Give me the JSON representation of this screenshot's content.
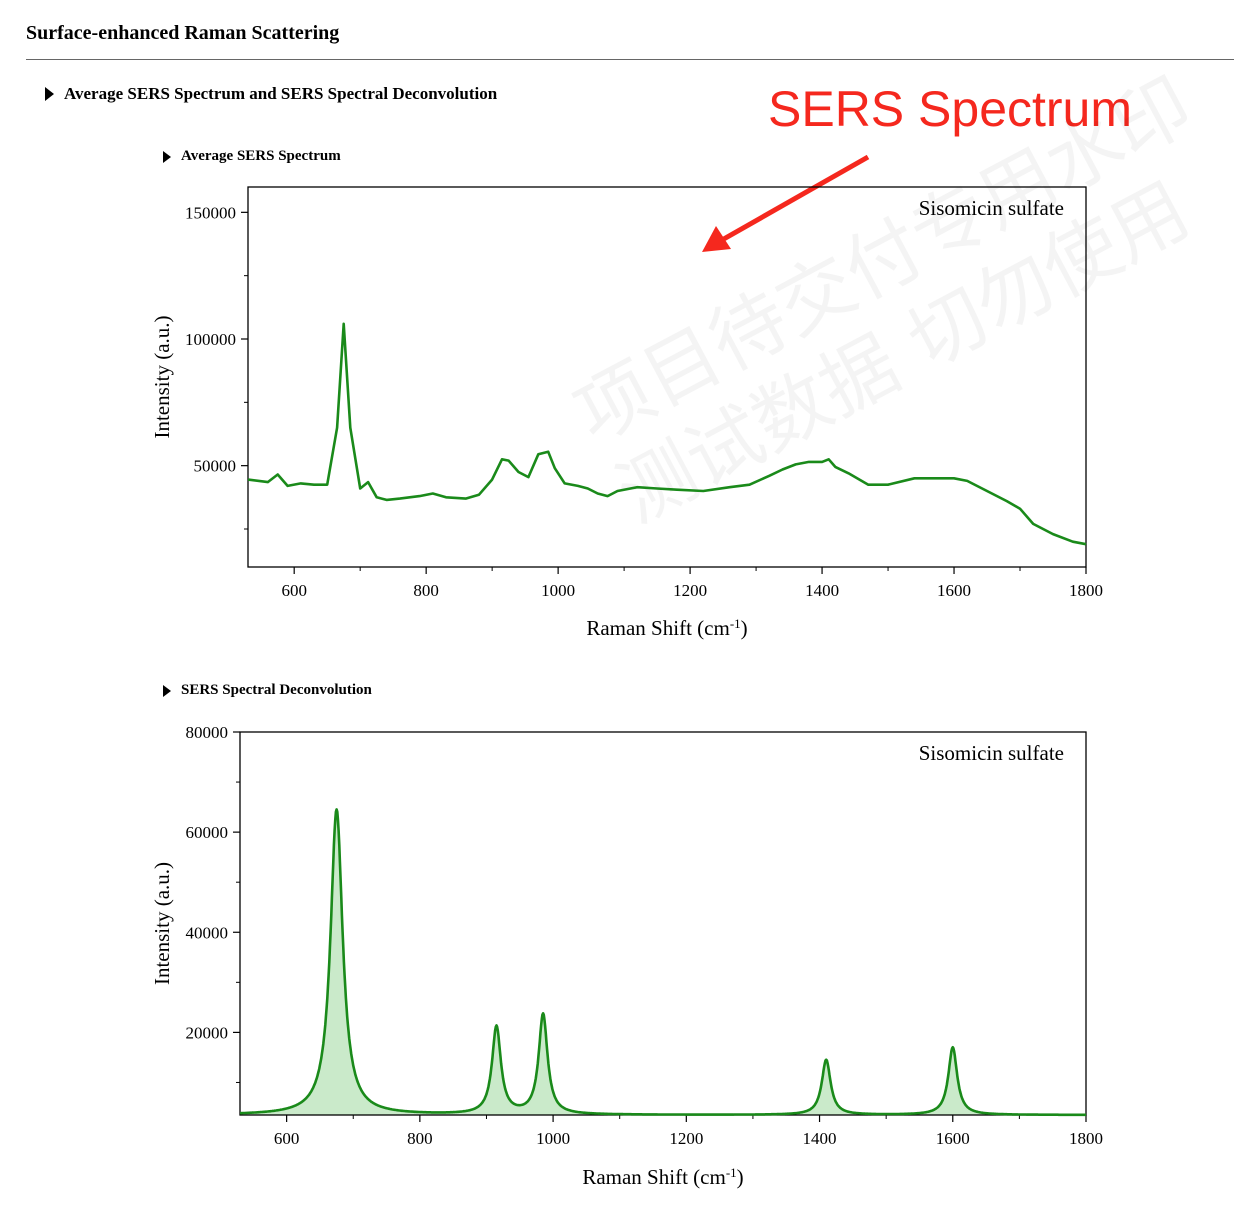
{
  "page": {
    "title": "Surface-enhanced Raman Scattering",
    "section": "Average SERS Spectrum and SERS Spectral Deconvolution",
    "annotation": "SERS Spectrum",
    "watermark_lines": [
      "项目待交付专用水印",
      "测试数据 切勿使用"
    ]
  },
  "colors": {
    "line": "#1a8a1a",
    "fill": "#9fd89f",
    "annotation": "#f5281e"
  },
  "chart_data": [
    {
      "section_title": "Average SERS Spectrum",
      "type": "line",
      "legend": "Sisomicin sulfate",
      "xlabel": "Raman Shift (cm",
      "xlabel_sup": "-1",
      "xlabel_end": ")",
      "ylabel": "Intensity (a.u.)",
      "xlim": [
        530,
        1800
      ],
      "ylim": [
        10000,
        160000
      ],
      "xticks": [
        600,
        800,
        1000,
        1200,
        1400,
        1600,
        1800
      ],
      "yticks": [
        50000,
        100000,
        150000
      ],
      "x": [
        530,
        560,
        575,
        590,
        610,
        630,
        650,
        665,
        675,
        685,
        700,
        712,
        725,
        740,
        760,
        790,
        810,
        830,
        860,
        880,
        900,
        915,
        925,
        940,
        955,
        970,
        985,
        995,
        1010,
        1030,
        1045,
        1060,
        1075,
        1090,
        1120,
        1150,
        1180,
        1220,
        1260,
        1290,
        1320,
        1340,
        1360,
        1380,
        1400,
        1410,
        1420,
        1440,
        1470,
        1500,
        1540,
        1570,
        1600,
        1620,
        1650,
        1680,
        1700,
        1720,
        1750,
        1780,
        1800
      ],
      "y": [
        44500,
        43500,
        46500,
        42000,
        43000,
        42500,
        42500,
        65000,
        106000,
        65000,
        41000,
        43500,
        37500,
        36500,
        37000,
        38000,
        39000,
        37500,
        37000,
        38500,
        44500,
        52500,
        52000,
        47500,
        45500,
        54500,
        55500,
        49000,
        43000,
        42000,
        41000,
        39000,
        38000,
        40000,
        41500,
        41000,
        40500,
        40000,
        41500,
        42500,
        46000,
        48500,
        50500,
        51500,
        51500,
        52500,
        49500,
        47000,
        42500,
        42500,
        45000,
        45000,
        45000,
        44000,
        40000,
        36000,
        33000,
        27000,
        23000,
        20000,
        19000
      ]
    },
    {
      "section_title": "SERS Spectral Deconvolution",
      "type": "area",
      "legend": "Sisomicin sulfate",
      "xlabel": "Raman Shift (cm",
      "xlabel_sup": "-1",
      "xlabel_end": ")",
      "ylabel": "Intensity (a.u.)",
      "xlim": [
        530,
        1800
      ],
      "ylim": [
        3500,
        80000
      ],
      "xticks": [
        600,
        800,
        1000,
        1200,
        1400,
        1600,
        1800
      ],
      "yticks": [
        20000,
        40000,
        60000,
        80000
      ],
      "baseline": 3500,
      "peaks": [
        {
          "center": 675,
          "height": 61000,
          "width": 11
        },
        {
          "center": 915,
          "height": 17500,
          "width": 8
        },
        {
          "center": 985,
          "height": 20000,
          "width": 8
        },
        {
          "center": 1410,
          "height": 11000,
          "width": 8
        },
        {
          "center": 1600,
          "height": 13500,
          "width": 8
        }
      ]
    }
  ]
}
